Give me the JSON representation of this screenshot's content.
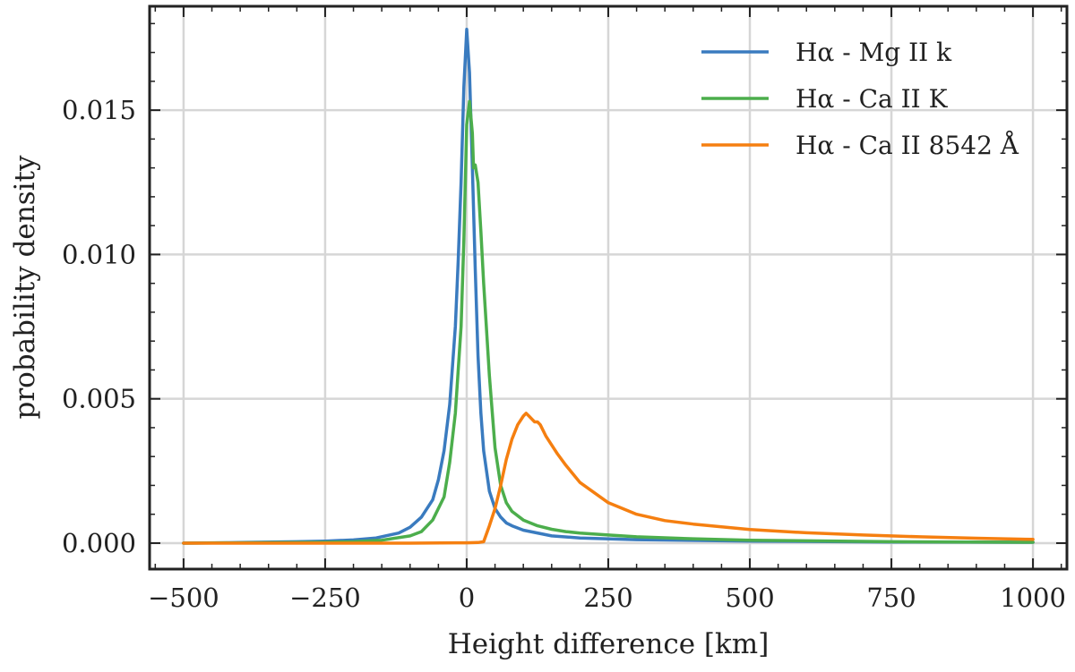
{
  "chart_data": {
    "type": "line",
    "title": "",
    "xlabel": "Height difference [km]",
    "ylabel": "probability density",
    "xlim": [
      -560,
      1060
    ],
    "ylim": [
      -0.0009,
      0.0186
    ],
    "xticks": [
      -500,
      -250,
      0,
      250,
      500,
      750,
      1000
    ],
    "xtick_labels": [
      "−500",
      "−250",
      "0",
      "250",
      "500",
      "750",
      "1000"
    ],
    "yticks": [
      0.0,
      0.005,
      0.01,
      0.015
    ],
    "ytick_labels": [
      "0.000",
      "0.005",
      "0.010",
      "0.015"
    ],
    "grid": true,
    "legend_position": "top-right",
    "series": [
      {
        "name": "Hα - Mg II k",
        "color": "#3a7bbf",
        "x": [
          -500,
          -400,
          -300,
          -250,
          -200,
          -160,
          -120,
          -100,
          -80,
          -60,
          -50,
          -40,
          -30,
          -20,
          -15,
          -10,
          -5,
          0,
          5,
          10,
          15,
          20,
          25,
          30,
          40,
          50,
          60,
          70,
          80,
          100,
          150,
          200,
          300,
          500,
          750,
          1000
        ],
        "y": [
          0.0,
          2e-05,
          5e-05,
          7e-05,
          0.00011,
          0.00018,
          0.00035,
          0.00055,
          0.0009,
          0.0015,
          0.0022,
          0.0032,
          0.0048,
          0.0075,
          0.0098,
          0.0125,
          0.0158,
          0.0178,
          0.0163,
          0.013,
          0.0095,
          0.0065,
          0.0045,
          0.0032,
          0.0018,
          0.0012,
          0.0009,
          0.0007,
          0.0006,
          0.00045,
          0.00025,
          0.00018,
          0.00012,
          7e-05,
          4e-05,
          3e-05
        ]
      },
      {
        "name": "Hα - Ca II K",
        "color": "#4cae4c",
        "x": [
          -500,
          -400,
          -300,
          -250,
          -200,
          -150,
          -100,
          -80,
          -60,
          -40,
          -30,
          -20,
          -10,
          -5,
          0,
          5,
          10,
          12,
          15,
          20,
          25,
          30,
          40,
          50,
          60,
          70,
          80,
          100,
          125,
          150,
          175,
          200,
          250,
          300,
          400,
          500,
          750,
          1000
        ],
        "y": [
          0.0,
          1e-05,
          2e-05,
          3e-05,
          5e-05,
          0.0001,
          0.00025,
          0.0004,
          0.0008,
          0.0016,
          0.0028,
          0.0045,
          0.0075,
          0.0105,
          0.0145,
          0.0153,
          0.0142,
          0.013,
          0.0131,
          0.0125,
          0.0108,
          0.009,
          0.0058,
          0.0033,
          0.002,
          0.0014,
          0.0011,
          0.0008,
          0.0006,
          0.00048,
          0.0004,
          0.00035,
          0.00028,
          0.00022,
          0.00015,
          0.0001,
          5e-05,
          3e-05
        ]
      },
      {
        "name": "Hα - Ca II 8542 Å",
        "color": "#f57f10",
        "x": [
          -500,
          -300,
          -100,
          0,
          20,
          30,
          40,
          50,
          60,
          70,
          80,
          90,
          100,
          105,
          110,
          115,
          120,
          125,
          130,
          140,
          150,
          160,
          175,
          200,
          250,
          300,
          350,
          400,
          500,
          600,
          700,
          800,
          900,
          1000
        ],
        "y": [
          0.0,
          0.0,
          0.0,
          1e-05,
          2e-05,
          5e-05,
          0.0006,
          0.0012,
          0.002,
          0.0029,
          0.0036,
          0.0041,
          0.0044,
          0.0045,
          0.0044,
          0.0043,
          0.0042,
          0.0042,
          0.0041,
          0.0037,
          0.0034,
          0.0031,
          0.0027,
          0.0021,
          0.0014,
          0.001,
          0.00078,
          0.00066,
          0.00047,
          0.00036,
          0.00028,
          0.00022,
          0.00017,
          0.00013
        ]
      }
    ]
  }
}
